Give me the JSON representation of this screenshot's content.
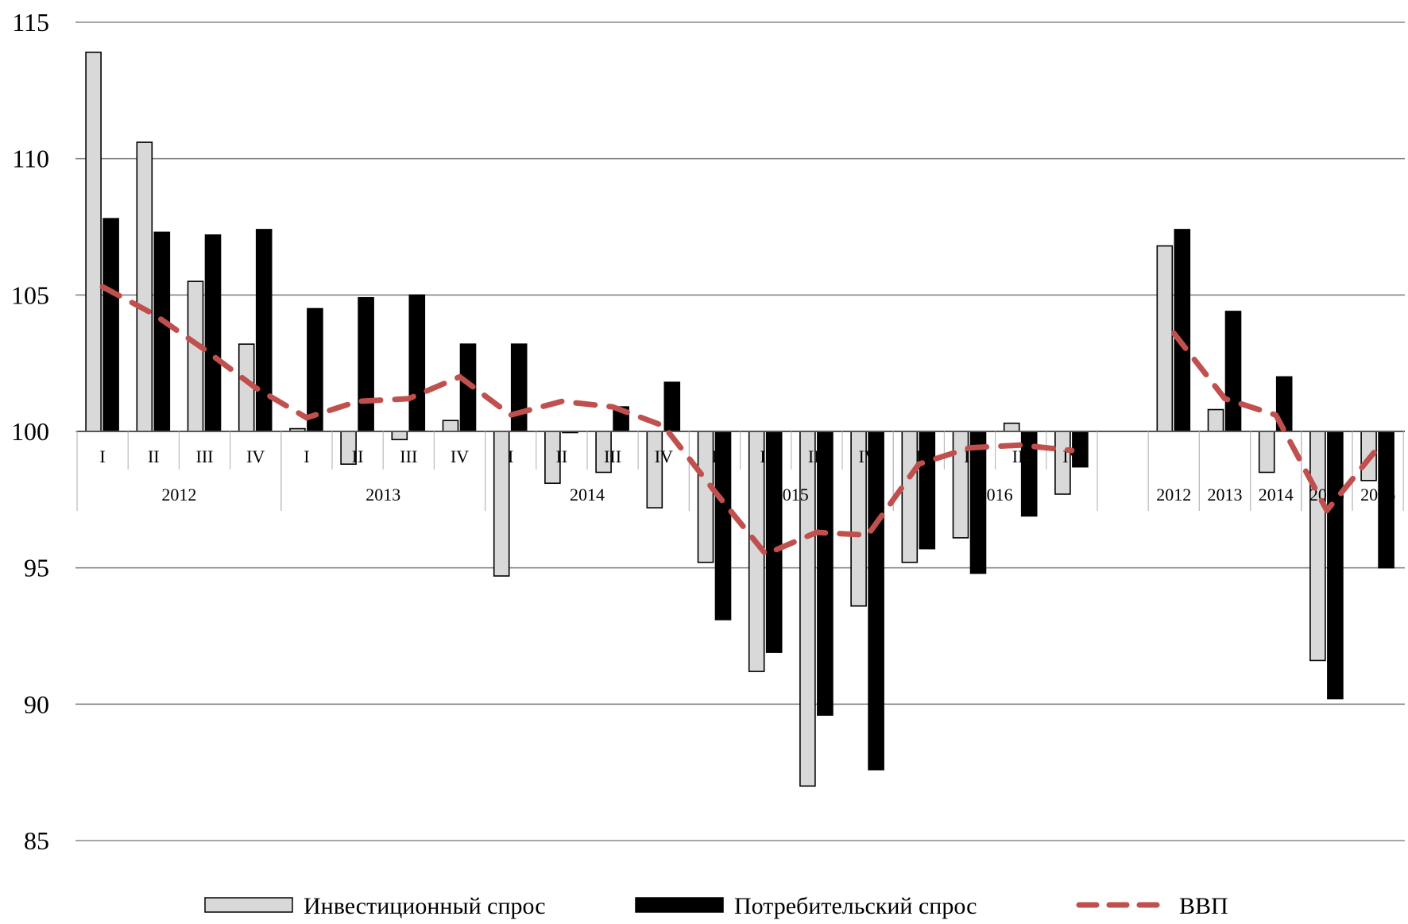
{
  "chart_data": {
    "type": "bar",
    "title": "",
    "xlabel": "",
    "ylabel": "",
    "ylim": [
      85,
      115
    ],
    "yticks": [
      85,
      90,
      95,
      100,
      105,
      110,
      115
    ],
    "baseline": 100,
    "grid": true,
    "legend_position": "bottom",
    "categories": [
      {
        "label": "I",
        "group": "2012"
      },
      {
        "label": "II",
        "group": "2012"
      },
      {
        "label": "III",
        "group": "2012"
      },
      {
        "label": "IV",
        "group": "2012"
      },
      {
        "label": "I",
        "group": "2013"
      },
      {
        "label": "II",
        "group": "2013"
      },
      {
        "label": "III",
        "group": "2013"
      },
      {
        "label": "IV",
        "group": "2013"
      },
      {
        "label": "I",
        "group": "2014"
      },
      {
        "label": "II",
        "group": "2014"
      },
      {
        "label": "III",
        "group": "2014"
      },
      {
        "label": "IV",
        "group": "2014"
      },
      {
        "label": "I",
        "group": "2015"
      },
      {
        "label": "II",
        "group": "2015"
      },
      {
        "label": "III",
        "group": "2015"
      },
      {
        "label": "IV",
        "group": "2015"
      },
      {
        "label": "I",
        "group": "2016"
      },
      {
        "label": "II",
        "group": "2016"
      },
      {
        "label": "III",
        "group": "2016"
      },
      {
        "label": "IV",
        "group": "2016"
      },
      {
        "label": "",
        "group": ""
      },
      {
        "label": "",
        "group": "2012"
      },
      {
        "label": "",
        "group": "2013"
      },
      {
        "label": "",
        "group": "2014"
      },
      {
        "label": "",
        "group": "2015"
      },
      {
        "label": "",
        "group": "2016"
      }
    ],
    "groups": [
      {
        "label": "2012",
        "start": 0,
        "end": 3
      },
      {
        "label": "2013",
        "start": 4,
        "end": 7
      },
      {
        "label": "2014",
        "start": 8,
        "end": 11
      },
      {
        "label": "2015",
        "start": 12,
        "end": 15
      },
      {
        "label": "2016",
        "start": 16,
        "end": 19
      },
      {
        "label": "2012",
        "start": 21,
        "end": 21
      },
      {
        "label": "2013",
        "start": 22,
        "end": 22
      },
      {
        "label": "2014",
        "start": 23,
        "end": 23
      },
      {
        "label": "2015",
        "start": 24,
        "end": 24
      },
      {
        "label": "2016",
        "start": 25,
        "end": 25
      }
    ],
    "series": [
      {
        "name": "Инвестиционный спрос",
        "kind": "bar",
        "color": "#d9d9d9",
        "stroke": "#000000",
        "values": [
          113.9,
          110.6,
          105.5,
          103.2,
          100.1,
          98.8,
          99.7,
          100.4,
          94.7,
          98.1,
          98.5,
          97.2,
          95.2,
          91.2,
          87.0,
          93.6,
          95.2,
          96.1,
          100.3,
          97.7,
          null,
          106.8,
          100.8,
          98.5,
          91.6,
          98.2
        ]
      },
      {
        "name": "Потребительский спрос",
        "kind": "bar",
        "color": "#000000",
        "stroke": "#000000",
        "values": [
          107.8,
          107.3,
          107.2,
          107.4,
          104.5,
          104.9,
          105.0,
          103.2,
          103.2,
          100.0,
          100.9,
          101.8,
          93.1,
          91.9,
          89.6,
          87.6,
          95.7,
          94.8,
          96.9,
          98.7,
          null,
          107.4,
          104.4,
          102.0,
          90.2,
          95.0
        ]
      },
      {
        "name": "ВВП",
        "kind": "line",
        "color": "#c0504d",
        "dash": true,
        "values": [
          105.3,
          104.3,
          103.0,
          101.6,
          100.5,
          101.1,
          101.2,
          102.0,
          100.6,
          101.1,
          100.9,
          100.2,
          97.8,
          95.5,
          96.3,
          96.2,
          98.8,
          99.4,
          99.5,
          99.3,
          null,
          103.6,
          101.2,
          100.6,
          97.1,
          99.4
        ]
      }
    ]
  },
  "legend": {
    "items": [
      {
        "name": "Инвестиционный спрос",
        "swatch": "bar-light"
      },
      {
        "name": "Потребительский спрос",
        "swatch": "bar-dark"
      },
      {
        "name": "ВВП",
        "swatch": "dashed-line"
      }
    ]
  }
}
